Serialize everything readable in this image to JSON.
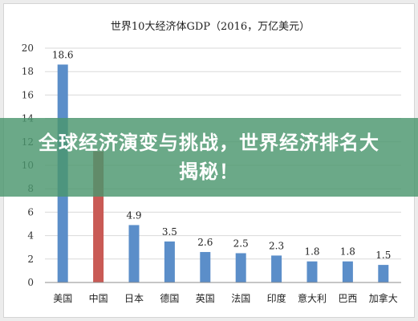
{
  "chart_data": {
    "type": "bar",
    "title": "世界10大经济体GDP（2016，万亿美元）",
    "categories": [
      "美国",
      "中国",
      "日本",
      "德国",
      "英国",
      "法国",
      "印度",
      "意大利",
      "巴西",
      "加拿大"
    ],
    "values": [
      18.6,
      11.2,
      4.9,
      3.5,
      2.6,
      2.5,
      2.3,
      1.8,
      1.8,
      1.5
    ],
    "data_labels": [
      "18.6",
      "",
      "4.9",
      "3.5",
      "2.6",
      "2.5",
      "2.3",
      "1.8",
      "1.8",
      "1.5"
    ],
    "ylim": [
      0,
      20
    ],
    "yticks": [
      0,
      2,
      4,
      6,
      8,
      10,
      12,
      14,
      16,
      18,
      20
    ],
    "grid": true,
    "legend": "none",
    "colors": {
      "default_bar": "#5b8ec9",
      "highlight_bar": "#c95a55",
      "grid": "#d9d9d9",
      "axis": "#8c8c8c"
    },
    "highlight_index": 1
  },
  "overlay": {
    "headline": "全球经济演变与挑战，世界经济排名大揭秘！",
    "background": "#4a966e"
  }
}
